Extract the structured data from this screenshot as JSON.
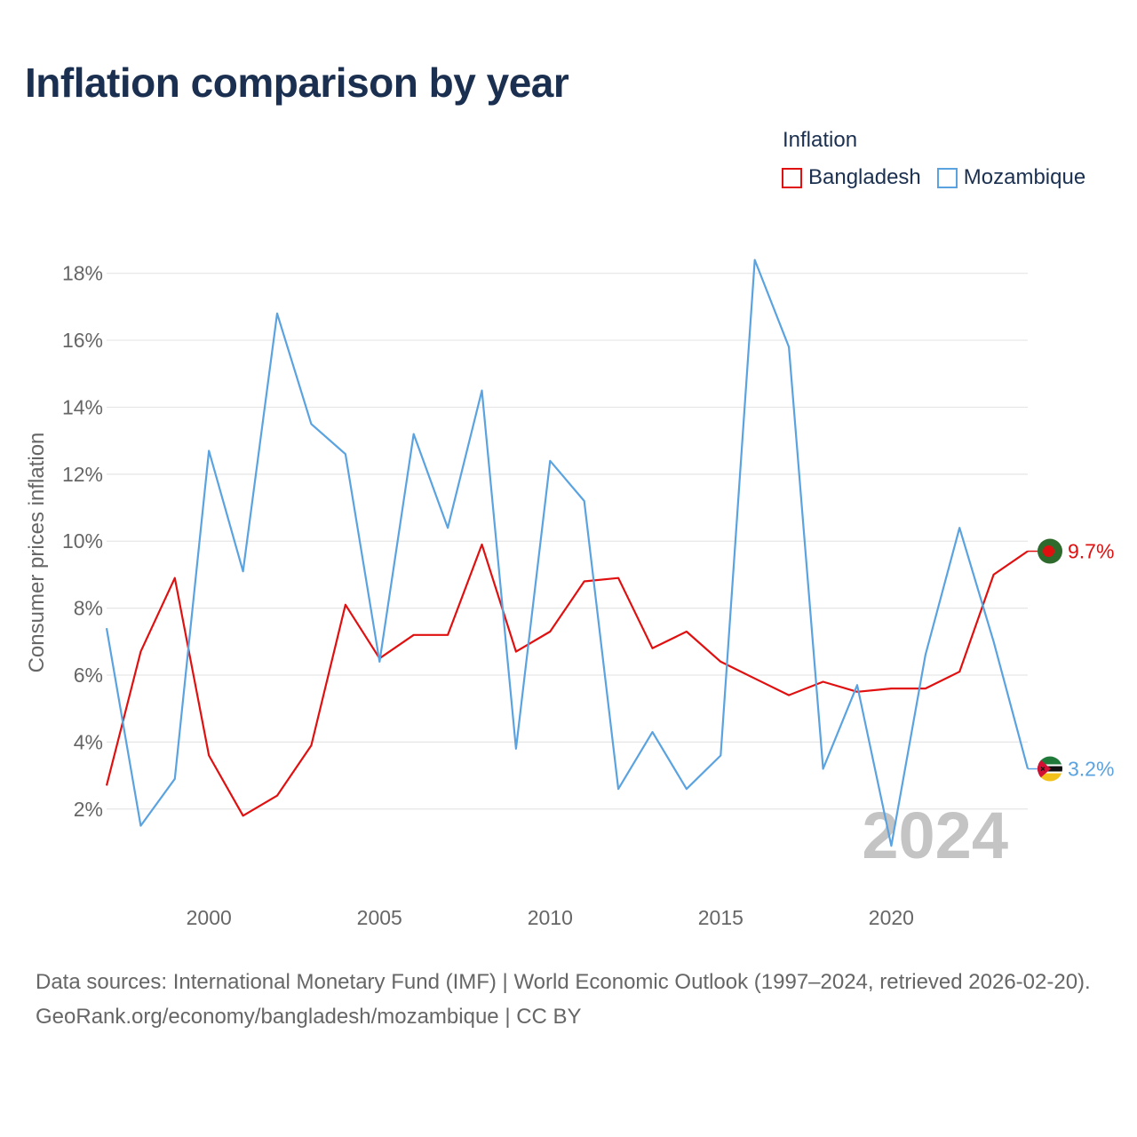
{
  "title": "Inflation comparison by year",
  "legend": {
    "title": "Inflation",
    "items": [
      {
        "label": "Bangladesh",
        "color": "#e01010"
      },
      {
        "label": "Mozambique",
        "color": "#5aa3e0"
      }
    ]
  },
  "year_label": "2024",
  "source": {
    "line1": "Data sources: International Monetary Fund (IMF) | World Economic Outlook (1997–2024, retrieved 2026-02-20).",
    "line2": "GeoRank.org/economy/bangladesh/mozambique | CC BY"
  },
  "chart_data": {
    "type": "line",
    "title": "Inflation comparison by year",
    "xlabel": "",
    "ylabel": "Consumer prices inflation",
    "x": [
      1997,
      1998,
      1999,
      2000,
      2001,
      2002,
      2003,
      2004,
      2005,
      2006,
      2007,
      2008,
      2009,
      2010,
      2011,
      2012,
      2013,
      2014,
      2015,
      2016,
      2017,
      2018,
      2019,
      2020,
      2021,
      2022,
      2023,
      2024
    ],
    "xlim": [
      1997,
      2024
    ],
    "ylim": [
      -0.5,
      19
    ],
    "xticks": [
      2000,
      2005,
      2010,
      2015,
      2020
    ],
    "yticks": [
      2,
      4,
      6,
      8,
      10,
      12,
      14,
      16,
      18
    ],
    "ytick_labels": [
      "2%",
      "4%",
      "6%",
      "8%",
      "10%",
      "12%",
      "14%",
      "16%",
      "18%"
    ],
    "grid": true,
    "legend_position": "top-right",
    "series": [
      {
        "name": "Bangladesh",
        "color": "#e01010",
        "values": [
          2.7,
          6.7,
          8.9,
          3.6,
          1.8,
          2.4,
          3.9,
          8.1,
          6.5,
          7.2,
          7.2,
          9.9,
          6.7,
          7.3,
          8.8,
          8.9,
          6.8,
          7.3,
          6.4,
          5.9,
          5.4,
          5.8,
          5.5,
          5.6,
          5.6,
          6.1,
          9.0,
          9.7
        ],
        "end_label": "9.7%"
      },
      {
        "name": "Mozambique",
        "color": "#5aa3e0",
        "values": [
          7.4,
          1.5,
          2.9,
          12.7,
          9.1,
          16.8,
          13.5,
          12.6,
          6.4,
          13.2,
          10.4,
          14.5,
          3.8,
          12.4,
          11.2,
          2.6,
          4.3,
          2.6,
          3.6,
          18.4,
          15.8,
          3.2,
          5.7,
          0.9,
          6.6,
          10.4,
          7.0,
          3.2
        ],
        "end_label": "3.2%"
      }
    ]
  }
}
